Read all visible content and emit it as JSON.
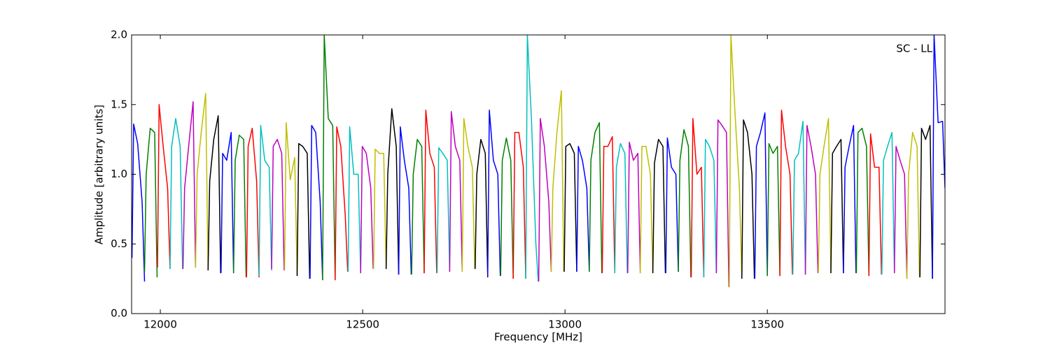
{
  "chart_data": {
    "type": "line",
    "xlabel": "Frequency [MHz]",
    "ylabel": "Amplitude [arbitrary units]",
    "annotation": "SC - LL",
    "xlim": [
      11929,
      13939
    ],
    "ylim": [
      0,
      2
    ],
    "xticks": [
      12000,
      12500,
      13000,
      13500
    ],
    "yticks": [
      {
        "value": 0,
        "label": "0.0"
      },
      0.5,
      {
        "value": 1,
        "label": "1.0"
      },
      1.5,
      {
        "value": 2,
        "label": "2.0"
      }
    ],
    "series": [
      {
        "color": "#0000ff",
        "x": [
          11930,
          11934,
          11944,
          11955,
          11961
        ],
        "values": [
          0.4,
          1.36,
          1.22,
          0.8,
          0.23
        ]
      },
      {
        "color": "#008000",
        "x": [
          11961,
          11965,
          11975,
          11986,
          11992
        ],
        "values": [
          0.3,
          1.0,
          1.33,
          1.3,
          0.26
        ]
      },
      {
        "color": "#ff0000",
        "x": [
          11993,
          11997,
          12007,
          12018,
          12024
        ],
        "values": [
          0.33,
          1.5,
          1.2,
          0.9,
          0.32
        ]
      },
      {
        "color": "#00bfbf",
        "x": [
          12024,
          12028,
          12038,
          12049,
          12055
        ],
        "values": [
          0.32,
          1.2,
          1.4,
          1.2,
          0.32
        ]
      },
      {
        "color": "#bf00bf",
        "x": [
          12056,
          12060,
          12070,
          12081,
          12087
        ],
        "values": [
          0.32,
          0.9,
          1.2,
          1.52,
          0.33
        ]
      },
      {
        "color": "#bfbf00",
        "x": [
          12087,
          12091,
          12101,
          12112,
          12118
        ],
        "values": [
          0.33,
          1.0,
          1.3,
          1.58,
          0.31
        ]
      },
      {
        "color": "#000000",
        "x": [
          12118,
          12122,
          12132,
          12143,
          12149
        ],
        "values": [
          0.31,
          0.95,
          1.25,
          1.42,
          0.29
        ]
      },
      {
        "color": "#0000ff",
        "x": [
          12150,
          12154,
          12164,
          12175,
          12181
        ],
        "values": [
          0.29,
          1.15,
          1.1,
          1.3,
          0.29
        ]
      },
      {
        "color": "#008000",
        "x": [
          12181,
          12185,
          12195,
          12206,
          12212
        ],
        "values": [
          0.29,
          1.1,
          1.28,
          1.25,
          0.26
        ]
      },
      {
        "color": "#ff0000",
        "x": [
          12213,
          12217,
          12227,
          12238,
          12244
        ],
        "values": [
          0.26,
          1.2,
          1.33,
          0.95,
          0.26
        ]
      },
      {
        "color": "#00bfbf",
        "x": [
          12244,
          12248,
          12258,
          12269,
          12275
        ],
        "values": [
          0.27,
          1.35,
          1.1,
          1.05,
          0.31
        ]
      },
      {
        "color": "#bf00bf",
        "x": [
          12275,
          12279,
          12289,
          12300,
          12306
        ],
        "values": [
          0.32,
          1.2,
          1.25,
          1.15,
          0.31
        ]
      },
      {
        "color": "#bfbf00",
        "x": [
          12307,
          12311,
          12321,
          12332,
          12338
        ],
        "values": [
          0.32,
          1.37,
          0.96,
          1.12,
          0.27
        ]
      },
      {
        "color": "#000000",
        "x": [
          12338,
          12342,
          12352,
          12363,
          12369
        ],
        "values": [
          0.27,
          1.22,
          1.2,
          1.15,
          0.25
        ]
      },
      {
        "color": "#0000ff",
        "x": [
          12370,
          12374,
          12384,
          12395,
          12401
        ],
        "values": [
          0.25,
          1.35,
          1.3,
          0.8,
          0.24
        ]
      },
      {
        "color": "#008000",
        "x": [
          12401,
          12405,
          12415,
          12426,
          12432
        ],
        "values": [
          0.24,
          2.0,
          1.4,
          1.35,
          0.24
        ]
      },
      {
        "color": "#ff0000",
        "x": [
          12432,
          12436,
          12446,
          12457,
          12463
        ],
        "values": [
          0.24,
          1.34,
          1.2,
          0.7,
          0.3
        ]
      },
      {
        "color": "#00bfbf",
        "x": [
          12464,
          12468,
          12478,
          12489,
          12495
        ],
        "values": [
          0.3,
          1.34,
          1.0,
          1.0,
          0.29
        ]
      },
      {
        "color": "#bf00bf",
        "x": [
          12495,
          12499,
          12509,
          12520,
          12526
        ],
        "values": [
          0.29,
          1.2,
          1.15,
          0.9,
          0.32
        ]
      },
      {
        "color": "#bfbf00",
        "x": [
          12527,
          12531,
          12541,
          12552,
          12558
        ],
        "values": [
          0.32,
          1.18,
          1.15,
          1.15,
          0.32
        ]
      },
      {
        "color": "#000000",
        "x": [
          12558,
          12562,
          12572,
          12583,
          12589
        ],
        "values": [
          0.32,
          1.0,
          1.47,
          1.2,
          0.28
        ]
      },
      {
        "color": "#0000ff",
        "x": [
          12589,
          12593,
          12603,
          12614,
          12620
        ],
        "values": [
          0.28,
          1.34,
          1.1,
          0.9,
          0.28
        ]
      },
      {
        "color": "#008000",
        "x": [
          12621,
          12625,
          12635,
          12646,
          12652
        ],
        "values": [
          0.28,
          1.0,
          1.25,
          1.2,
          0.29
        ]
      },
      {
        "color": "#ff0000",
        "x": [
          12652,
          12656,
          12666,
          12677,
          12683
        ],
        "values": [
          0.29,
          1.46,
          1.15,
          1.05,
          0.29
        ]
      },
      {
        "color": "#00bfbf",
        "x": [
          12684,
          12688,
          12698,
          12709,
          12715
        ],
        "values": [
          0.29,
          1.19,
          1.15,
          1.1,
          0.3
        ]
      },
      {
        "color": "#bf00bf",
        "x": [
          12715,
          12719,
          12729,
          12740,
          12746
        ],
        "values": [
          0.3,
          1.45,
          1.2,
          1.1,
          0.3
        ]
      },
      {
        "color": "#bfbf00",
        "x": [
          12746,
          12750,
          12760,
          12771,
          12777
        ],
        "values": [
          0.3,
          1.4,
          1.2,
          1.05,
          0.32
        ]
      },
      {
        "color": "#000000",
        "x": [
          12778,
          12782,
          12792,
          12803,
          12809
        ],
        "values": [
          0.32,
          1.0,
          1.25,
          1.15,
          0.26
        ]
      },
      {
        "color": "#0000ff",
        "x": [
          12809,
          12813,
          12823,
          12834,
          12840
        ],
        "values": [
          0.27,
          1.46,
          1.1,
          1.0,
          0.27
        ]
      },
      {
        "color": "#008000",
        "x": [
          12841,
          12845,
          12855,
          12866,
          12872
        ],
        "values": [
          0.27,
          1.1,
          1.26,
          1.1,
          0.25
        ]
      },
      {
        "color": "#ff0000",
        "x": [
          12872,
          12876,
          12886,
          12897,
          12903
        ],
        "values": [
          0.25,
          1.3,
          1.3,
          1.05,
          0.25
        ]
      },
      {
        "color": "#00bfbf",
        "x": [
          12903,
          12907,
          12917,
          12928,
          12934
        ],
        "values": [
          0.25,
          2.0,
          1.4,
          0.5,
          0.23
        ]
      },
      {
        "color": "#bf00bf",
        "x": [
          12935,
          12939,
          12949,
          12960,
          12966
        ],
        "values": [
          0.23,
          1.4,
          1.2,
          0.8,
          0.3
        ]
      },
      {
        "color": "#bfbf00",
        "x": [
          12966,
          12970,
          12980,
          12991,
          12997
        ],
        "values": [
          0.3,
          0.9,
          1.3,
          1.6,
          0.3
        ]
      },
      {
        "color": "#000000",
        "x": [
          12998,
          13002,
          13012,
          13023,
          13029
        ],
        "values": [
          0.3,
          1.2,
          1.22,
          1.15,
          0.3
        ]
      },
      {
        "color": "#0000ff",
        "x": [
          13029,
          13033,
          13043,
          13054,
          13060
        ],
        "values": [
          0.3,
          1.2,
          1.1,
          0.9,
          0.3
        ]
      },
      {
        "color": "#008000",
        "x": [
          13060,
          13064,
          13074,
          13085,
          13091
        ],
        "values": [
          0.3,
          1.1,
          1.3,
          1.37,
          0.29
        ]
      },
      {
        "color": "#ff0000",
        "x": [
          13092,
          13096,
          13106,
          13117,
          13123
        ],
        "values": [
          0.29,
          1.2,
          1.2,
          1.27,
          0.29
        ]
      },
      {
        "color": "#00bfbf",
        "x": [
          13123,
          13127,
          13137,
          13148,
          13154
        ],
        "values": [
          0.29,
          1.05,
          1.22,
          1.15,
          0.29
        ]
      },
      {
        "color": "#bf00bf",
        "x": [
          13155,
          13159,
          13169,
          13180,
          13186
        ],
        "values": [
          0.29,
          1.23,
          1.1,
          1.15,
          0.29
        ]
      },
      {
        "color": "#bfbf00",
        "x": [
          13186,
          13190,
          13200,
          13211,
          13217
        ],
        "values": [
          0.29,
          1.2,
          1.2,
          1.0,
          0.29
        ]
      },
      {
        "color": "#000000",
        "x": [
          13217,
          13221,
          13231,
          13242,
          13248
        ],
        "values": [
          0.29,
          1.08,
          1.25,
          1.2,
          0.29
        ]
      },
      {
        "color": "#0000ff",
        "x": [
          13249,
          13253,
          13263,
          13274,
          13280
        ],
        "values": [
          0.29,
          1.26,
          1.05,
          1.0,
          0.3
        ]
      },
      {
        "color": "#008000",
        "x": [
          13280,
          13284,
          13294,
          13305,
          13311
        ],
        "values": [
          0.3,
          1.1,
          1.32,
          1.2,
          0.26
        ]
      },
      {
        "color": "#ff0000",
        "x": [
          13312,
          13316,
          13326,
          13337,
          13343
        ],
        "values": [
          0.26,
          1.4,
          1.0,
          1.05,
          0.26
        ]
      },
      {
        "color": "#00bfbf",
        "x": [
          13343,
          13347,
          13357,
          13368,
          13374
        ],
        "values": [
          0.26,
          1.25,
          1.2,
          1.1,
          0.29
        ]
      },
      {
        "color": "#bf00bf",
        "x": [
          13374,
          13378,
          13388,
          13399,
          13405
        ],
        "values": [
          0.29,
          1.39,
          1.35,
          1.3,
          0.19
        ]
      },
      {
        "color": "#bfbf00",
        "x": [
          13406,
          13410,
          13420,
          13431,
          13437
        ],
        "values": [
          0.19,
          2.0,
          1.44,
          0.9,
          0.25
        ]
      },
      {
        "color": "#000000",
        "x": [
          13437,
          13441,
          13451,
          13462,
          13468
        ],
        "values": [
          0.25,
          1.39,
          1.3,
          1.0,
          0.25
        ]
      },
      {
        "color": "#0000ff",
        "x": [
          13469,
          13473,
          13483,
          13494,
          13500
        ],
        "values": [
          0.25,
          1.2,
          1.3,
          1.44,
          0.27
        ]
      },
      {
        "color": "#008000",
        "x": [
          13500,
          13504,
          13514,
          13525,
          13531
        ],
        "values": [
          0.27,
          1.22,
          1.15,
          1.2,
          0.27
        ]
      },
      {
        "color": "#ff0000",
        "x": [
          13531,
          13535,
          13545,
          13556,
          13562
        ],
        "values": [
          0.27,
          1.46,
          1.2,
          1.0,
          0.28
        ]
      },
      {
        "color": "#00bfbf",
        "x": [
          13563,
          13567,
          13577,
          13588,
          13594
        ],
        "values": [
          0.28,
          1.1,
          1.15,
          1.38,
          0.28
        ]
      },
      {
        "color": "#bf00bf",
        "x": [
          13594,
          13598,
          13608,
          13619,
          13625
        ],
        "values": [
          0.28,
          1.35,
          1.2,
          1.0,
          0.29
        ]
      },
      {
        "color": "#bfbf00",
        "x": [
          13626,
          13630,
          13640,
          13651,
          13657
        ],
        "values": [
          0.29,
          1.0,
          1.2,
          1.4,
          0.29
        ]
      },
      {
        "color": "#000000",
        "x": [
          13657,
          13661,
          13671,
          13682,
          13688
        ],
        "values": [
          0.29,
          1.15,
          1.2,
          1.25,
          0.29
        ]
      },
      {
        "color": "#0000ff",
        "x": [
          13688,
          13692,
          13702,
          13713,
          13719
        ],
        "values": [
          0.29,
          1.05,
          1.2,
          1.35,
          0.29
        ]
      },
      {
        "color": "#008000",
        "x": [
          13720,
          13724,
          13734,
          13745,
          13751
        ],
        "values": [
          0.29,
          1.3,
          1.33,
          1.2,
          0.27
        ]
      },
      {
        "color": "#ff0000",
        "x": [
          13751,
          13755,
          13765,
          13776,
          13782
        ],
        "values": [
          0.27,
          1.29,
          1.05,
          1.05,
          0.28
        ]
      },
      {
        "color": "#00bfbf",
        "x": [
          13783,
          13787,
          13797,
          13808,
          13814
        ],
        "values": [
          0.28,
          1.1,
          1.2,
          1.3,
          0.29
        ]
      },
      {
        "color": "#bf00bf",
        "x": [
          13814,
          13818,
          13828,
          13839,
          13845
        ],
        "values": [
          0.29,
          1.2,
          1.1,
          1.0,
          0.25
        ]
      },
      {
        "color": "#bfbf00",
        "x": [
          13845,
          13849,
          13859,
          13870,
          13876
        ],
        "values": [
          0.25,
          1.0,
          1.3,
          1.2,
          0.26
        ]
      },
      {
        "color": "#000000",
        "x": [
          13877,
          13881,
          13891,
          13902,
          13908
        ],
        "values": [
          0.26,
          1.33,
          1.25,
          1.35,
          0.25
        ]
      },
      {
        "color": "#0000ff",
        "x": [
          13908,
          13912,
          13922,
          13933,
          13939
        ],
        "values": [
          0.25,
          2.0,
          1.37,
          1.38,
          0.9
        ]
      }
    ]
  }
}
